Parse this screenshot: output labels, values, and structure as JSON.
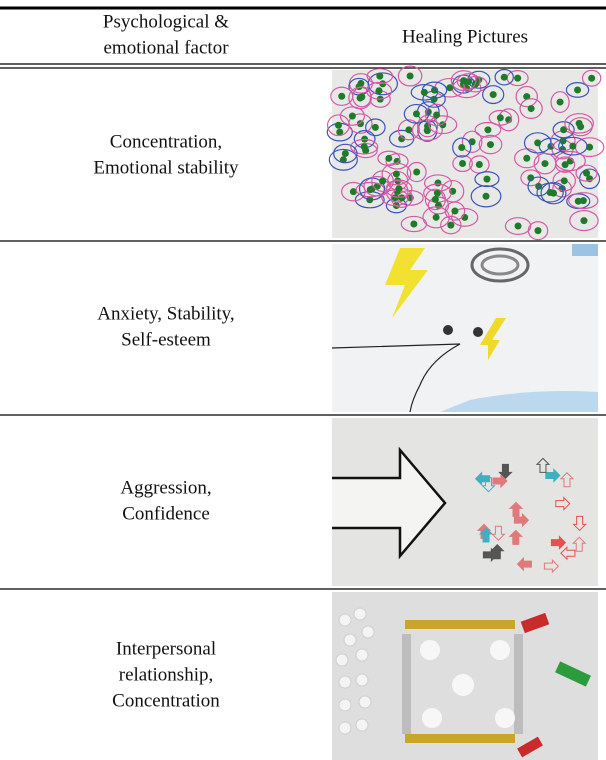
{
  "header": {
    "columns": [
      [
        "Psychological &",
        "emotional factor"
      ],
      [
        "Healing Pictures"
      ]
    ]
  },
  "table": {
    "rows": [
      [
        [
          "Concentration,",
          "Emotional stability"
        ]
      ],
      [
        [
          "Anxiety, Stability,",
          "Self-esteem"
        ]
      ],
      [
        [
          "Aggression,",
          "Confidence"
        ]
      ],
      [
        [
          "Interpersonal",
          "relationship,",
          "Concentration"
        ]
      ]
    ]
  }
}
